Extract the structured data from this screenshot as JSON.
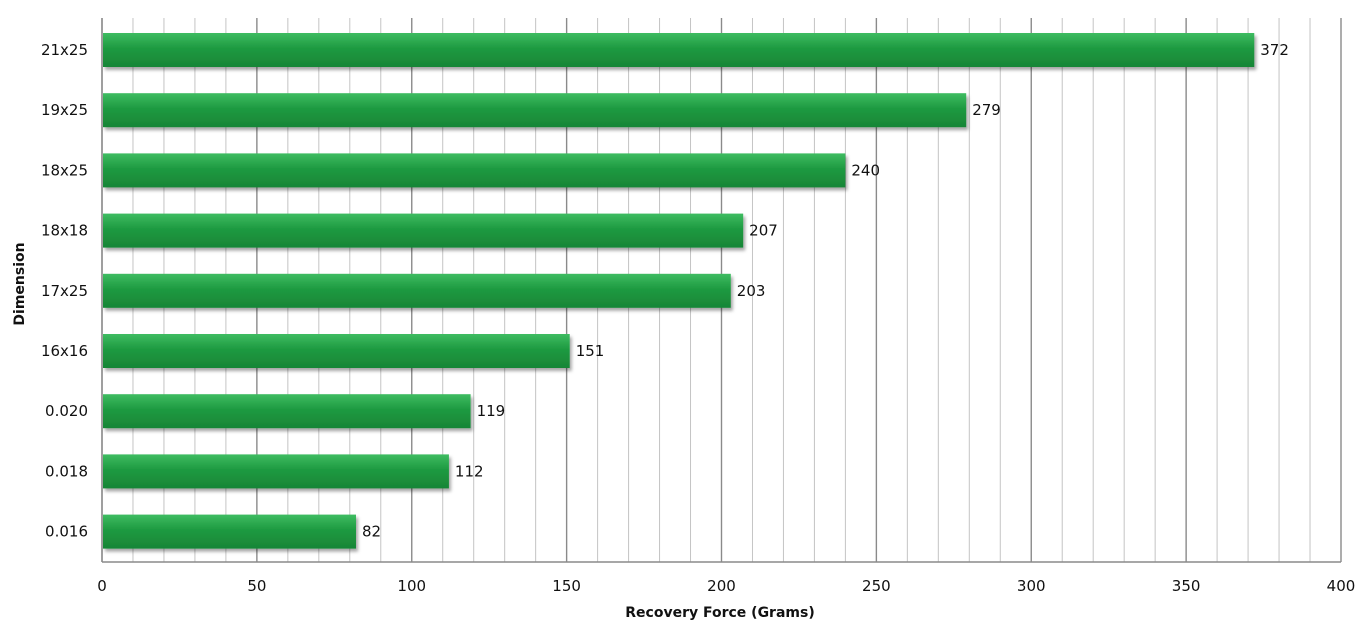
{
  "chart_data": {
    "type": "bar",
    "orientation": "horizontal",
    "categories": [
      "21x25",
      "19x25",
      "18x25",
      "18x18",
      "17x25",
      "16x16",
      "0.020",
      "0.018",
      "0.016"
    ],
    "values": [
      372,
      279,
      240,
      207,
      203,
      151,
      119,
      112,
      82
    ],
    "data_labels": [
      "372",
      "279",
      "240",
      "207",
      "203",
      "151",
      "119",
      "112",
      "82"
    ],
    "xlabel": "Recovery Force (Grams)",
    "ylabel": "Dimension",
    "xlim": [
      0,
      400
    ],
    "xticks": [
      "0",
      "50",
      "100",
      "150",
      "200",
      "250",
      "300",
      "350",
      "400"
    ],
    "grid": "vertical",
    "legend": "none",
    "colors": {
      "bar": "#1e9a41",
      "bar_top": "#35b85a",
      "grid_major": "#8a8a8a",
      "grid_minor": "#c4c4c4"
    }
  }
}
